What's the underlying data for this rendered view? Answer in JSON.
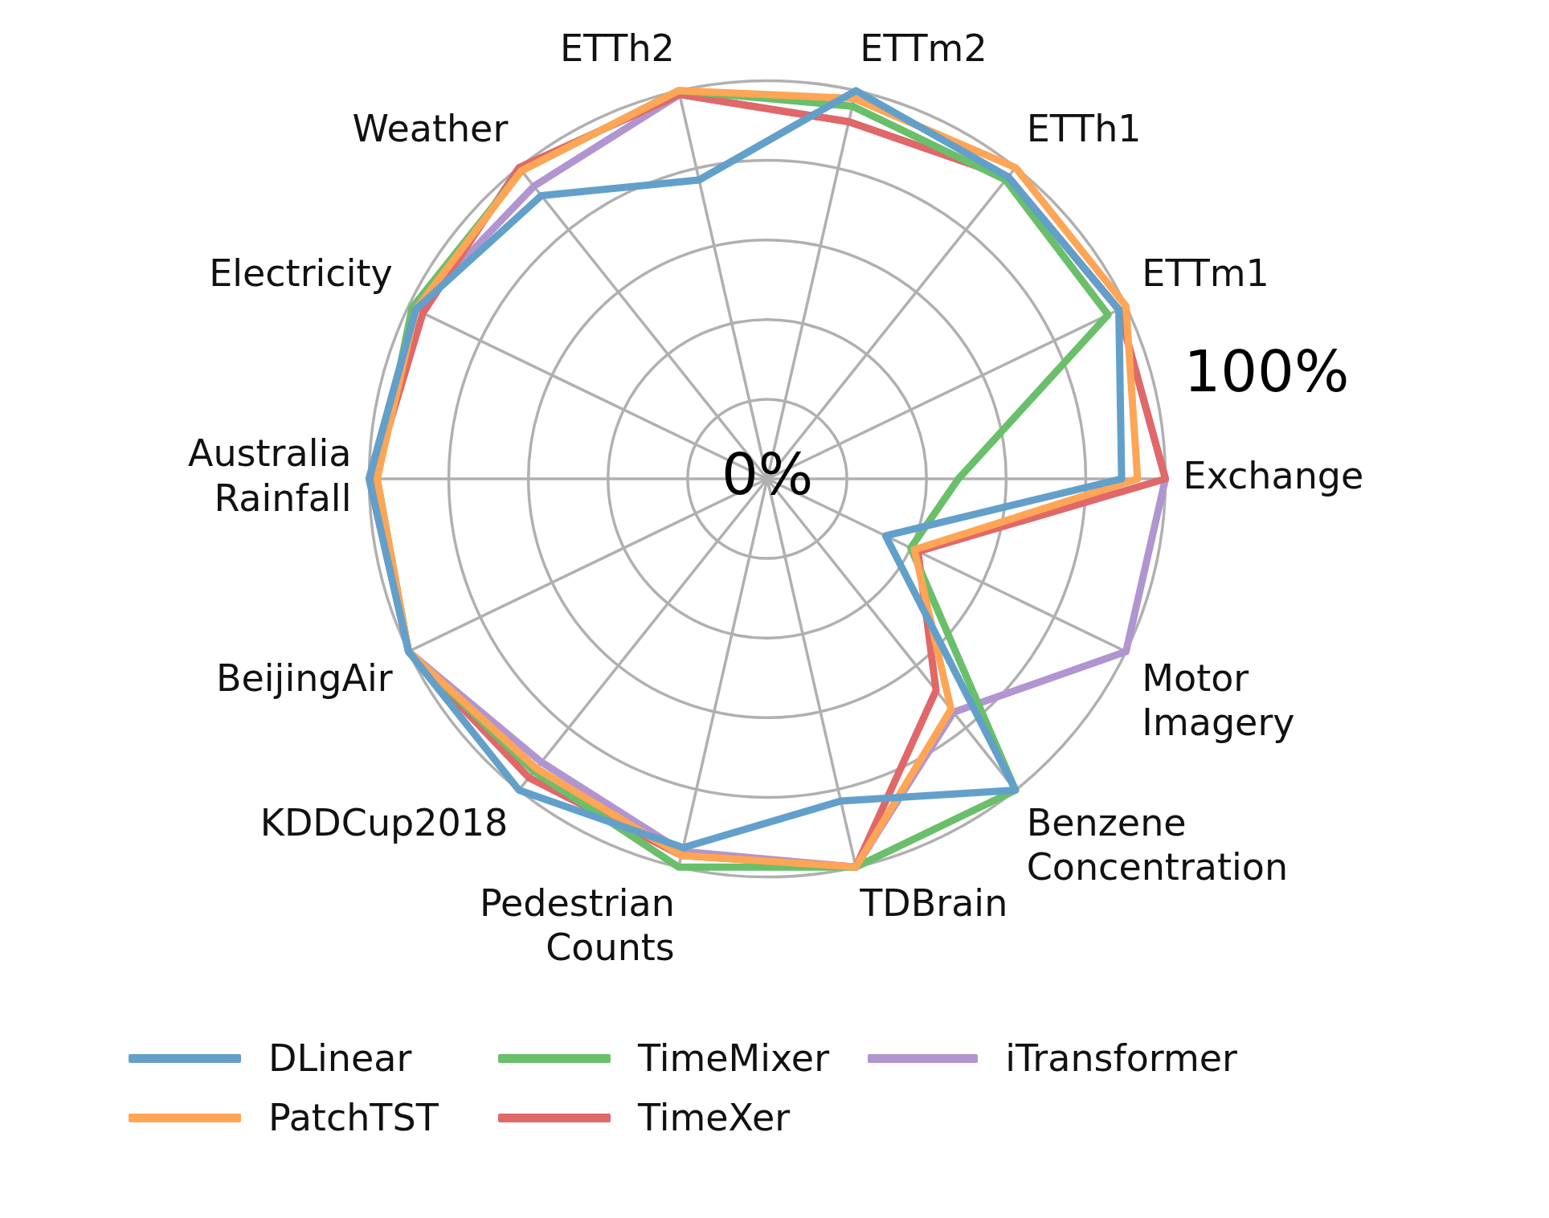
{
  "chart_data": {
    "type": "radar",
    "categories": [
      "ETTm2",
      "ETTh1",
      "ETTm1",
      "Exchange",
      "Motor Imagery",
      "Benzene Concentration",
      "TDBrain",
      "Pedestrian Counts",
      "KDDCup2018",
      "BeijingAir",
      "Australia Rainfall",
      "Electricity",
      "Weather",
      "ETTh2"
    ],
    "series": [
      {
        "name": "DLinear",
        "color": "#62a0ca",
        "values": [
          100,
          97,
          98,
          89,
          33,
          100,
          83,
          95,
          100,
          100,
          100,
          98,
          91,
          77
        ]
      },
      {
        "name": "PatchTST",
        "color": "#ffa556",
        "values": [
          98,
          100,
          100,
          93,
          41,
          74,
          100,
          97,
          93,
          100,
          98,
          98,
          99,
          100
        ]
      },
      {
        "name": "TimeMixer",
        "color": "#6abf6a",
        "values": [
          96,
          96,
          95,
          48,
          40,
          100,
          100,
          100,
          94,
          100,
          98,
          99,
          99,
          100
        ]
      },
      {
        "name": "TimeXer",
        "color": "#e06869",
        "values": [
          92,
          97,
          98,
          100,
          42,
          68,
          100,
          97,
          96,
          100,
          99,
          96,
          100,
          99
        ]
      },
      {
        "name": "iTransformer",
        "color": "#b195d0",
        "values": [
          92,
          97,
          98,
          100,
          100,
          75,
          100,
          96,
          91,
          100,
          100,
          98,
          94,
          99
        ]
      }
    ],
    "ylim": [
      0,
      100
    ],
    "yticks": [
      {
        "value": 0,
        "label": "0%"
      },
      {
        "value": 100,
        "label": "100%"
      }
    ],
    "grid": true,
    "legend": "bottom"
  }
}
